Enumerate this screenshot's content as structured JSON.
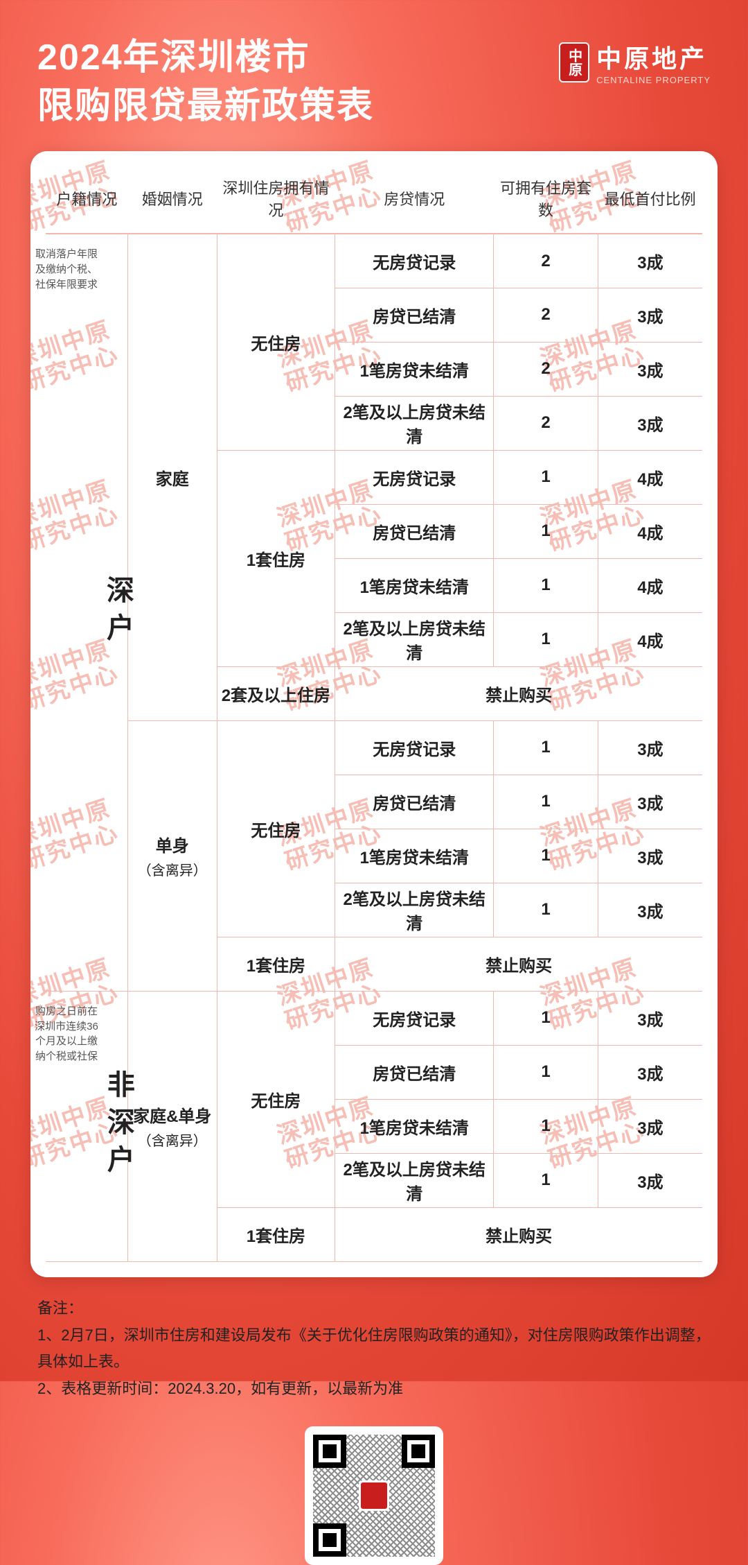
{
  "header": {
    "title_line1": "2024年深圳楼市",
    "title_line2": "限购限贷最新政策表",
    "logo_cn": "中原地产",
    "logo_en": "CENTALINE PROPERTY",
    "logo_badge": "中原"
  },
  "table": {
    "columns": [
      "户籍情况",
      "婚姻情况",
      "深圳住房拥有情况",
      "房贷情况",
      "可拥有住房套数",
      "最低首付比例"
    ],
    "sections": [
      {
        "hukou": "深户",
        "hukou_note": "取消落户年限\n及缴纳个税、\n社保年限要求",
        "groups": [
          {
            "marital": "家庭",
            "marital_sub": "",
            "housings": [
              {
                "housing": "无住房",
                "rows": [
                  {
                    "mortgage": "无房贷记录",
                    "allowed": "2",
                    "down": "3成"
                  },
                  {
                    "mortgage": "房贷已结清",
                    "allowed": "2",
                    "down": "3成"
                  },
                  {
                    "mortgage": "1笔房贷未结清",
                    "allowed": "2",
                    "down": "3成"
                  },
                  {
                    "mortgage": "2笔及以上房贷未结清",
                    "allowed": "2",
                    "down": "3成"
                  }
                ]
              },
              {
                "housing": "1套住房",
                "rows": [
                  {
                    "mortgage": "无房贷记录",
                    "allowed": "1",
                    "down": "4成"
                  },
                  {
                    "mortgage": "房贷已结清",
                    "allowed": "1",
                    "down": "4成"
                  },
                  {
                    "mortgage": "1笔房贷未结清",
                    "allowed": "1",
                    "down": "4成"
                  },
                  {
                    "mortgage": "2笔及以上房贷未结清",
                    "allowed": "1",
                    "down": "4成"
                  }
                ]
              },
              {
                "housing": "2套及以上住房",
                "ban": "禁止购买"
              }
            ]
          },
          {
            "marital": "单身",
            "marital_sub": "（含离异）",
            "housings": [
              {
                "housing": "无住房",
                "rows": [
                  {
                    "mortgage": "无房贷记录",
                    "allowed": "1",
                    "down": "3成"
                  },
                  {
                    "mortgage": "房贷已结清",
                    "allowed": "1",
                    "down": "3成"
                  },
                  {
                    "mortgage": "1笔房贷未结清",
                    "allowed": "1",
                    "down": "3成"
                  },
                  {
                    "mortgage": "2笔及以上房贷未结清",
                    "allowed": "1",
                    "down": "3成"
                  }
                ]
              },
              {
                "housing": "1套住房",
                "ban": "禁止购买"
              }
            ]
          }
        ]
      },
      {
        "hukou": "非深户",
        "hukou_note": "购房之日前在\n深圳市连续36\n个月及以上缴\n纳个税或社保",
        "groups": [
          {
            "marital": "家庭&单身",
            "marital_sub": "（含离异）",
            "housings": [
              {
                "housing": "无住房",
                "rows": [
                  {
                    "mortgage": "无房贷记录",
                    "allowed": "1",
                    "down": "3成"
                  },
                  {
                    "mortgage": "房贷已结清",
                    "allowed": "1",
                    "down": "3成"
                  },
                  {
                    "mortgage": "1笔房贷未结清",
                    "allowed": "1",
                    "down": "3成"
                  },
                  {
                    "mortgage": "2笔及以上房贷未结清",
                    "allowed": "1",
                    "down": "3成"
                  }
                ]
              },
              {
                "housing": "1套住房",
                "ban": "禁止购买"
              }
            ]
          }
        ]
      }
    ]
  },
  "notes": {
    "label": "备注：",
    "lines": [
      "1、2月7日，深圳市住房和建设局发布《关于优化住房限购政策的通知》，对住房限购政策作出调整，具体如上表。",
      "2、表格更新时间：2024.3.20，如有更新，以最新为准"
    ]
  },
  "watermark": "深圳中原\n研究中心",
  "colors": {
    "border": "#f3b8ad",
    "bg_grad_inner": "#ff9a8a",
    "bg_grad_outer": "#d63828",
    "watermark": "#f08a7a"
  }
}
